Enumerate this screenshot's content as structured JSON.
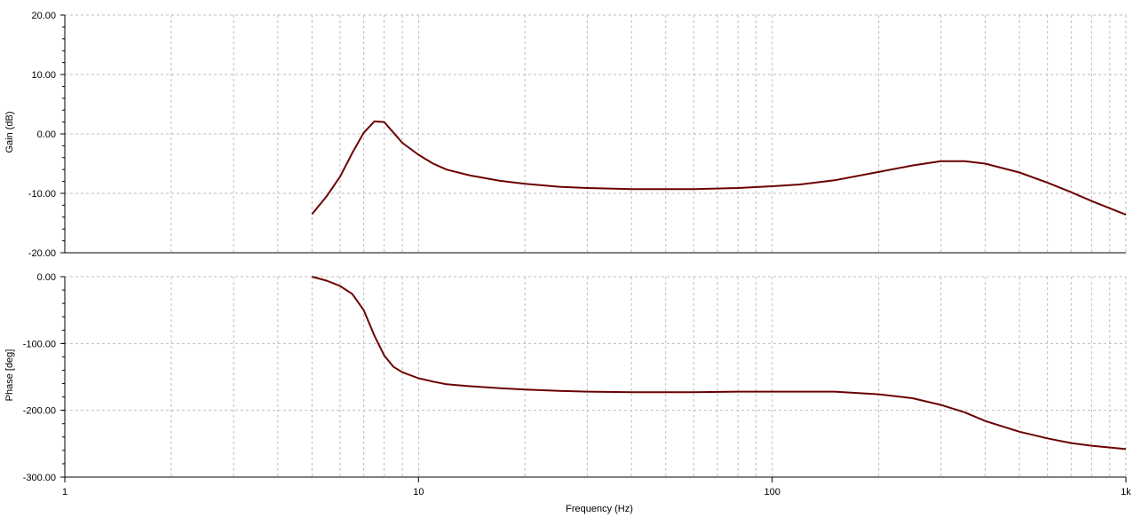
{
  "chart_data": [
    {
      "type": "line",
      "panel": "gain",
      "ylabel": "Gain (dB)",
      "x_scale": "log",
      "xlim": [
        1,
        1000
      ],
      "ylim": [
        -20,
        20
      ],
      "y_ticks": [
        20,
        10,
        0,
        -10,
        -20
      ],
      "y_tick_labels": [
        "20.00",
        "10.00",
        "0.00",
        "-10.00",
        "-20.00"
      ],
      "grid": true,
      "line_color": "#6b0000",
      "series": [
        {
          "x": [
            5,
            5.5,
            6,
            6.5,
            7,
            7.5,
            8,
            8.5,
            9,
            10,
            11,
            12,
            14,
            17,
            20,
            25,
            30,
            40,
            60,
            80,
            100,
            120,
            150,
            200,
            250,
            300,
            350,
            400,
            500,
            600,
            700,
            800,
            1000
          ],
          "y": [
            -13.5,
            -10.5,
            -7.2,
            -3.2,
            0.2,
            2.1,
            2.0,
            0.2,
            -1.5,
            -3.5,
            -5.0,
            -6.0,
            -7.0,
            -7.9,
            -8.4,
            -8.9,
            -9.1,
            -9.3,
            -9.3,
            -9.1,
            -8.8,
            -8.5,
            -7.8,
            -6.4,
            -5.3,
            -4.6,
            -4.6,
            -5.0,
            -6.5,
            -8.2,
            -9.8,
            -11.3,
            -13.6
          ]
        }
      ]
    },
    {
      "type": "line",
      "panel": "phase",
      "ylabel": "Phase [deg]",
      "xlabel": "Frequency (Hz)",
      "x_scale": "log",
      "xlim": [
        1,
        1000
      ],
      "ylim": [
        -300,
        0
      ],
      "y_ticks": [
        0,
        -100,
        -200,
        -300
      ],
      "y_tick_labels": [
        "0.00",
        "-100.00",
        "-200.00",
        "-300.00"
      ],
      "x_ticks": [
        1,
        10,
        100,
        1000
      ],
      "x_tick_labels": [
        "1",
        "10",
        "100",
        "1k"
      ],
      "grid": true,
      "line_color": "#6b0000",
      "series": [
        {
          "x": [
            5,
            5.5,
            6,
            6.5,
            7,
            7.5,
            8,
            8.5,
            9,
            10,
            11,
            12,
            14,
            17,
            20,
            25,
            30,
            40,
            60,
            80,
            100,
            150,
            200,
            250,
            300,
            350,
            400,
            500,
            600,
            700,
            800,
            1000
          ],
          "y": [
            0,
            -6,
            -14,
            -26,
            -50,
            -88,
            -118,
            -135,
            -143,
            -152,
            -157,
            -161,
            -164,
            -167,
            -169,
            -171,
            -172,
            -173,
            -173,
            -172,
            -172,
            -172,
            -176,
            -182,
            -192,
            -203,
            -216,
            -232,
            -242,
            -249,
            -253,
            -258
          ]
        }
      ]
    }
  ]
}
